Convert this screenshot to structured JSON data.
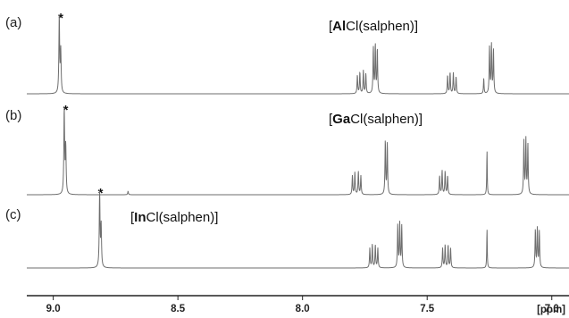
{
  "chart_data": {
    "type": "line",
    "x_unit_label": "[ppm]",
    "x_ticks": [
      {
        "value": 9.0,
        "label": "9.0"
      },
      {
        "value": 8.5,
        "label": "8.5"
      },
      {
        "value": 8.0,
        "label": "8.0"
      },
      {
        "value": 7.5,
        "label": "7.5"
      },
      {
        "value": 7.0,
        "label": "7.0"
      }
    ],
    "xlim": [
      9.05,
      6.96
    ],
    "x_reversed": true,
    "grid": false,
    "legend": "none",
    "spectra": [
      {
        "label": "(a)",
        "compound_prefix": "[",
        "metal": "Al",
        "compound_suffix": "Cl(salphen)]",
        "star": "*",
        "star_shift": 8.97,
        "peaks": [
          {
            "shift": 8.976,
            "height": 1.0,
            "width": 0.0018
          },
          {
            "shift": 8.97,
            "height": 0.55,
            "width": 0.0018
          },
          {
            "shift": 7.78,
            "height": 0.24,
            "width": 0.0016
          },
          {
            "shift": 7.77,
            "height": 0.28,
            "width": 0.0016
          },
          {
            "shift": 7.756,
            "height": 0.3,
            "width": 0.0016
          },
          {
            "shift": 7.746,
            "height": 0.26,
            "width": 0.0016
          },
          {
            "shift": 7.716,
            "height": 0.6,
            "width": 0.0016
          },
          {
            "shift": 7.708,
            "height": 0.63,
            "width": 0.0016
          },
          {
            "shift": 7.7,
            "height": 0.58,
            "width": 0.0016
          },
          {
            "shift": 7.418,
            "height": 0.24,
            "width": 0.0016
          },
          {
            "shift": 7.408,
            "height": 0.28,
            "width": 0.0016
          },
          {
            "shift": 7.395,
            "height": 0.27,
            "width": 0.0016
          },
          {
            "shift": 7.384,
            "height": 0.22,
            "width": 0.0016
          },
          {
            "shift": 7.273,
            "height": 0.2,
            "width": 0.0014
          },
          {
            "shift": 7.25,
            "height": 0.6,
            "width": 0.0016
          },
          {
            "shift": 7.242,
            "height": 0.63,
            "width": 0.0016
          },
          {
            "shift": 7.234,
            "height": 0.57,
            "width": 0.0016
          }
        ]
      },
      {
        "label": "(b)",
        "compound_prefix": "[",
        "metal": "Ga",
        "compound_suffix": "Cl(salphen)]",
        "star": "*",
        "star_shift": 8.95,
        "peaks": [
          {
            "shift": 8.956,
            "height": 1.0,
            "width": 0.0018
          },
          {
            "shift": 8.95,
            "height": 0.55,
            "width": 0.0018
          },
          {
            "shift": 8.7,
            "height": 0.04,
            "width": 0.0016
          },
          {
            "shift": 7.8,
            "height": 0.22,
            "width": 0.0016
          },
          {
            "shift": 7.79,
            "height": 0.26,
            "width": 0.0016
          },
          {
            "shift": 7.776,
            "height": 0.27,
            "width": 0.0016
          },
          {
            "shift": 7.766,
            "height": 0.22,
            "width": 0.0016
          },
          {
            "shift": 7.668,
            "height": 0.63,
            "width": 0.0016
          },
          {
            "shift": 7.66,
            "height": 0.6,
            "width": 0.0016
          },
          {
            "shift": 7.45,
            "height": 0.22,
            "width": 0.0016
          },
          {
            "shift": 7.44,
            "height": 0.28,
            "width": 0.0016
          },
          {
            "shift": 7.428,
            "height": 0.27,
            "width": 0.0016
          },
          {
            "shift": 7.418,
            "height": 0.22,
            "width": 0.0016
          },
          {
            "shift": 7.26,
            "height": 0.52,
            "width": 0.0012
          },
          {
            "shift": 7.112,
            "height": 0.62,
            "width": 0.0016
          },
          {
            "shift": 7.104,
            "height": 0.64,
            "width": 0.0016
          },
          {
            "shift": 7.096,
            "height": 0.58,
            "width": 0.0016
          }
        ]
      },
      {
        "label": "(c)",
        "compound_prefix": "[",
        "metal": "In",
        "compound_suffix": "Cl(salphen)]",
        "star": "*",
        "star_shift": 8.81,
        "peaks": [
          {
            "shift": 8.814,
            "height": 1.0,
            "width": 0.0018
          },
          {
            "shift": 8.808,
            "height": 0.55,
            "width": 0.0018
          },
          {
            "shift": 7.73,
            "height": 0.26,
            "width": 0.0016
          },
          {
            "shift": 7.72,
            "height": 0.31,
            "width": 0.0016
          },
          {
            "shift": 7.708,
            "height": 0.3,
            "width": 0.0016
          },
          {
            "shift": 7.698,
            "height": 0.26,
            "width": 0.0016
          },
          {
            "shift": 7.618,
            "height": 0.56,
            "width": 0.0016
          },
          {
            "shift": 7.61,
            "height": 0.58,
            "width": 0.0016
          },
          {
            "shift": 7.602,
            "height": 0.55,
            "width": 0.0016
          },
          {
            "shift": 7.438,
            "height": 0.26,
            "width": 0.0016
          },
          {
            "shift": 7.428,
            "height": 0.3,
            "width": 0.0016
          },
          {
            "shift": 7.416,
            "height": 0.3,
            "width": 0.0016
          },
          {
            "shift": 7.406,
            "height": 0.26,
            "width": 0.0016
          },
          {
            "shift": 7.26,
            "height": 0.52,
            "width": 0.0012
          },
          {
            "shift": 7.066,
            "height": 0.5,
            "width": 0.0016
          },
          {
            "shift": 7.058,
            "height": 0.52,
            "width": 0.0016
          },
          {
            "shift": 7.05,
            "height": 0.48,
            "width": 0.0016
          }
        ]
      }
    ]
  }
}
